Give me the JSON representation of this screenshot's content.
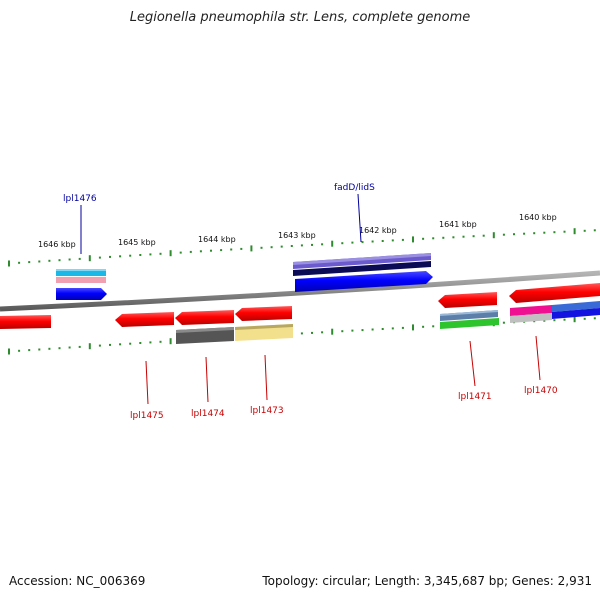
{
  "title": "Legionella pneumophila str. Lens, complete genome",
  "accession": "Accession: NC_006369",
  "topology": "Topology: circular; Length: 3,345,687 bp; Genes: 2,931",
  "colors": {
    "backbone": "#808080",
    "tick": "#2e8b2e",
    "forward_label": "#00009e",
    "reverse_label": "#c80000",
    "forward_gene": "#1010f0",
    "reverse_gene": "#f01010"
  },
  "scale_labels": [
    "1646 kbp",
    "1645 kbp",
    "1644 kbp",
    "1643 kbp",
    "1642 kbp",
    "1641 kbp",
    "1640 kbp"
  ],
  "gene_labels": {
    "top": [
      "lpl1476",
      "fadD/lidS"
    ],
    "bottom": [
      "lpl1475",
      "lpl1474",
      "lpl1473",
      "lpl1471",
      "lpl1470"
    ]
  }
}
